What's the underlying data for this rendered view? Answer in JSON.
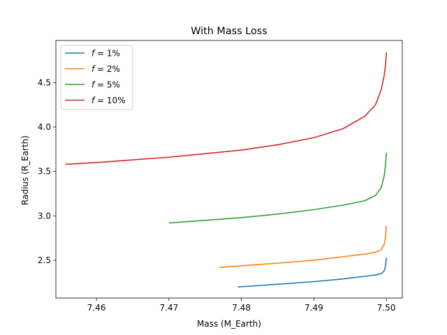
{
  "chart_data": {
    "type": "line",
    "title": "With Mass Loss",
    "xlabel": "Mass (M_Earth)",
    "ylabel": "Radius (R_Earth)",
    "xlim": [
      7.4544,
      7.5022
    ],
    "ylim": [
      2.0755,
      4.9735
    ],
    "xticks": [
      7.46,
      7.47,
      7.48,
      7.49,
      7.5
    ],
    "xtick_labels": [
      "7.46",
      "7.47",
      "7.48",
      "7.49",
      "7.50"
    ],
    "yticks": [
      2.5,
      3.0,
      3.5,
      4.0,
      4.5
    ],
    "ytick_labels": [
      "2.5",
      "3.0",
      "3.5",
      "4.0",
      "4.5"
    ],
    "grid": false,
    "legend_position": "upper-left",
    "series": [
      {
        "name": "f = 1%",
        "legend_var": "f",
        "legend_rest": " = 1%",
        "color": "#1f77b4",
        "x": [
          7.4795,
          7.485,
          7.49,
          7.494,
          7.497,
          7.4985,
          7.4993,
          7.4997,
          7.4999,
          7.5
        ],
        "y": [
          2.2,
          2.23,
          2.26,
          2.29,
          2.32,
          2.335,
          2.35,
          2.38,
          2.44,
          2.53
        ]
      },
      {
        "name": "f = 2%",
        "legend_var": "f",
        "legend_rest": " = 2%",
        "color": "#ff7f0e",
        "x": [
          7.477,
          7.482,
          7.487,
          7.491,
          7.494,
          7.497,
          7.4985,
          7.4993,
          7.4997,
          7.4999,
          7.5
        ],
        "y": [
          2.42,
          2.45,
          2.48,
          2.51,
          2.54,
          2.57,
          2.59,
          2.62,
          2.68,
          2.77,
          2.89
        ]
      },
      {
        "name": "f = 5%",
        "legend_var": "f",
        "legend_rest": " = 5%",
        "color": "#2ca02c",
        "x": [
          7.47,
          7.475,
          7.48,
          7.485,
          7.49,
          7.494,
          7.497,
          7.4985,
          7.4993,
          7.4997,
          7.4999,
          7.5
        ],
        "y": [
          2.92,
          2.95,
          2.98,
          3.02,
          3.07,
          3.12,
          3.17,
          3.23,
          3.32,
          3.45,
          3.58,
          3.71
        ]
      },
      {
        "name": "f = 10%",
        "legend_var": "f",
        "legend_rest": " = 10%",
        "color": "#d62728",
        "x": [
          7.4557,
          7.46,
          7.465,
          7.47,
          7.475,
          7.48,
          7.485,
          7.49,
          7.494,
          7.497,
          7.4985,
          7.4993,
          7.4997,
          7.4999,
          7.5
        ],
        "y": [
          3.58,
          3.6,
          3.63,
          3.66,
          3.7,
          3.74,
          3.8,
          3.88,
          3.98,
          4.12,
          4.25,
          4.42,
          4.58,
          4.7,
          4.84
        ]
      }
    ]
  }
}
